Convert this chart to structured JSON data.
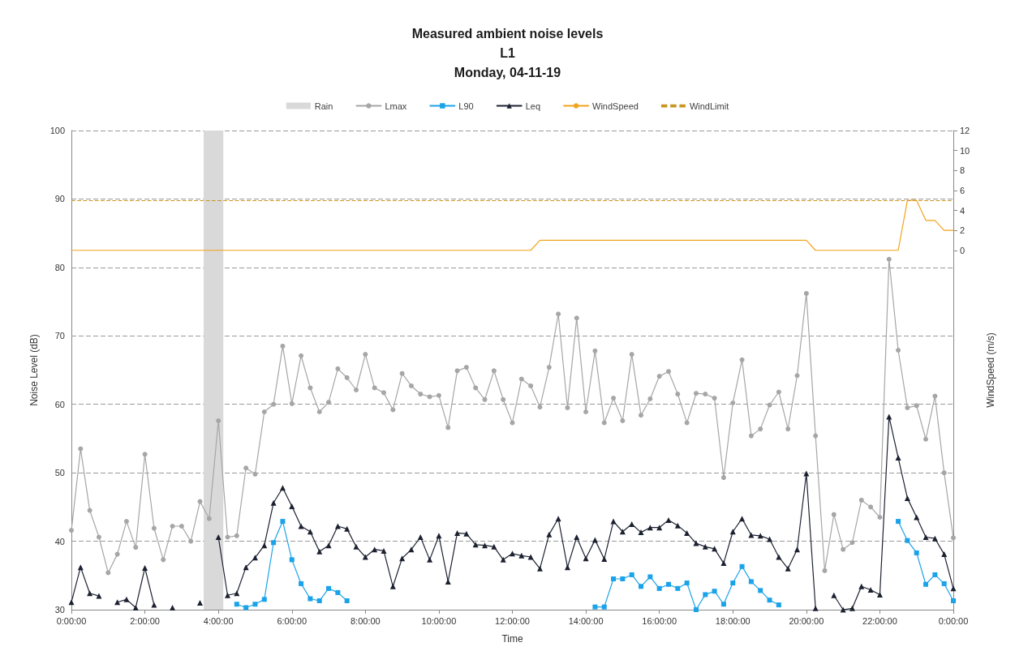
{
  "chart_data": {
    "type": "line",
    "title": "Measured ambient noise levels\nL1\nMonday, 04-11-19",
    "xlabel": "Time",
    "ylabel": "Noise Level (dB)",
    "y2label": "WindSpeed (m/s)",
    "x": [
      "--11-04T00:00",
      "--11-04T00:15",
      "--11-04T00:30",
      "--11-04T00:45",
      "--11-04T01:00",
      "--11-04T01:15",
      "--11-04T01:30",
      "--11-04T01:45",
      "--11-04T02:00",
      "--11-04T02:15",
      "--11-04T02:30",
      "--11-04T02:45",
      "--11-04T03:00",
      "--11-04T03:15",
      "--11-04T03:30",
      "--11-04T03:45",
      "--11-04T04:00",
      "--11-04T04:15",
      "--11-04T04:30",
      "--11-04T04:45",
      "--11-04T05:00",
      "--11-04T05:15",
      "--11-04T05:30",
      "--11-04T05:45",
      "--11-04T06:00",
      "--11-04T06:15",
      "--11-04T06:30",
      "--11-04T06:45",
      "--11-04T07:00",
      "--11-04T07:15",
      "--11-04T07:30",
      "--11-04T07:45",
      "--11-04T08:00",
      "--11-04T08:15",
      "--11-04T08:30",
      "--11-04T08:45",
      "--11-04T09:00",
      "--11-04T09:15",
      "--11-04T09:30",
      "--11-04T09:45",
      "--11-04T10:00",
      "--11-04T10:15",
      "--11-04T10:30",
      "--11-04T10:45",
      "--11-04T11:00",
      "--11-04T11:15",
      "--11-04T11:30",
      "--11-04T11:45",
      "--11-04T12:00",
      "--11-04T12:15",
      "--11-04T12:30",
      "--11-04T12:45",
      "--11-04T13:00",
      "--11-04T13:15",
      "--11-04T13:30",
      "--11-04T13:45",
      "--11-04T14:00",
      "--11-04T14:15",
      "--11-04T14:30",
      "--11-04T14:45",
      "--11-04T15:00",
      "--11-04T15:15",
      "--11-04T15:30",
      "--11-04T15:45",
      "--11-04T16:00",
      "--11-04T16:15",
      "--11-04T16:30",
      "--11-04T16:45",
      "--11-04T17:00",
      "--11-04T17:15",
      "--11-04T17:30",
      "--11-04T17:45",
      "--11-04T18:00",
      "--11-04T18:15",
      "--11-04T18:30",
      "--11-04T18:45",
      "--11-04T19:00",
      "--11-04T19:15",
      "--11-04T19:30",
      "--11-04T19:45",
      "--11-04T20:00",
      "--11-04T20:15",
      "--11-04T20:30",
      "--11-04T20:45",
      "--11-04T21:00",
      "--11-04T21:15",
      "--11-04T21:30",
      "--11-04T21:45",
      "--11-04T22:00",
      "--11-04T22:15",
      "--11-04T22:30",
      "--11-04T22:45",
      "--11-04T23:00",
      "--11-04T23:15",
      "--11-04T23:30",
      "--11-04T23:45",
      "--11-05T00:00"
    ],
    "xlim": [
      "--11-04T00:00",
      "--11-05T00:00"
    ],
    "xticks": [
      {
        "value": "--11-04T00:00",
        "label": "0:00:00"
      },
      {
        "value": "--11-04T02:00",
        "label": "2:00:00"
      },
      {
        "value": "--11-04T04:00",
        "label": "4:00:00"
      },
      {
        "value": "--11-04T06:00",
        "label": "6:00:00"
      },
      {
        "value": "--11-04T08:00",
        "label": "8:00:00"
      },
      {
        "value": "--11-04T10:00",
        "label": "10:00:00"
      },
      {
        "value": "--11-04T12:00",
        "label": "12:00:00"
      },
      {
        "value": "--11-04T14:00",
        "label": "14:00:00"
      },
      {
        "value": "--11-04T16:00",
        "label": "16:00:00"
      },
      {
        "value": "--11-04T18:00",
        "label": "18:00:00"
      },
      {
        "value": "--11-04T20:00",
        "label": "20:00:00"
      },
      {
        "value": "--11-04T22:00",
        "label": "22:00:00"
      },
      {
        "value": "--11-05T00:00",
        "label": "0:00:00"
      }
    ],
    "ylim": [
      30,
      100
    ],
    "yticks": [
      30,
      40,
      50,
      60,
      70,
      80,
      90,
      100
    ],
    "y2lim": [
      -36,
      12
    ],
    "y2ticks": [
      0,
      2,
      4,
      6,
      8,
      10,
      12
    ],
    "grid": "y",
    "legend": "top",
    "series": [
      {
        "name": "Lmax",
        "color": "#a6a6a6",
        "marker": "circle",
        "values": [
          41.6,
          53.5,
          44.5,
          40.6,
          35.4,
          38.1,
          42.9,
          39.1,
          52.7,
          41.9,
          37.3,
          42.2,
          42.2,
          40.0,
          45.8,
          43.3,
          57.6,
          40.6,
          40.8,
          50.7,
          49.8,
          58.9,
          60.0,
          68.5,
          60.1,
          67.1,
          62.4,
          58.9,
          60.3,
          65.2,
          63.9,
          62.1,
          67.3,
          62.4,
          61.7,
          59.2,
          64.5,
          62.7,
          61.5,
          61.1,
          61.3,
          56.6,
          64.9,
          65.4,
          62.4,
          60.7,
          64.9,
          60.7,
          57.3,
          63.7,
          62.7,
          59.6,
          65.4,
          73.2,
          59.5,
          72.6,
          58.9,
          67.8,
          57.3,
          60.9,
          57.6,
          67.3,
          58.4,
          60.8,
          64.1,
          64.8,
          61.5,
          57.3,
          61.6,
          61.5,
          60.9,
          49.3,
          60.2,
          66.5,
          55.4,
          56.4,
          59.9,
          61.8,
          56.4,
          64.2,
          76.2,
          55.4,
          35.7,
          43.9,
          38.8,
          39.8,
          46.0,
          45.0,
          43.5,
          81.2,
          67.9,
          59.5,
          59.8,
          54.9,
          61.2,
          50.0,
          40.5
        ]
      },
      {
        "name": "L90",
        "color": "#1aa3e8",
        "marker": "square",
        "values": [
          null,
          null,
          null,
          null,
          null,
          null,
          null,
          null,
          null,
          null,
          null,
          null,
          null,
          null,
          null,
          null,
          null,
          null,
          30.8,
          30.3,
          30.8,
          31.5,
          39.8,
          42.9,
          37.3,
          33.8,
          31.6,
          31.3,
          33.1,
          32.5,
          31.3,
          null,
          null,
          null,
          null,
          null,
          null,
          null,
          null,
          null,
          null,
          null,
          null,
          null,
          null,
          null,
          null,
          null,
          null,
          null,
          null,
          null,
          null,
          null,
          null,
          null,
          null,
          30.4,
          30.4,
          34.5,
          34.5,
          35.1,
          33.4,
          34.8,
          33.1,
          33.7,
          33.1,
          33.9,
          30.0,
          32.2,
          32.7,
          30.8,
          33.9,
          36.3,
          34.1,
          32.8,
          31.4,
          30.7,
          null,
          null,
          null,
          null,
          null,
          null,
          null,
          null,
          null,
          null,
          null,
          null,
          42.9,
          40.1,
          38.3,
          33.7,
          35.1,
          33.8,
          31.3
        ]
      },
      {
        "name": "Leq",
        "color": "#1c2130",
        "marker": "triangle",
        "values": [
          31.1,
          36.2,
          32.4,
          32.0,
          null,
          31.1,
          31.5,
          30.3,
          36.1,
          30.7,
          null,
          30.3,
          null,
          null,
          31.0,
          null,
          40.6,
          32.1,
          32.4,
          36.2,
          37.6,
          39.4,
          45.6,
          47.8,
          45.1,
          42.2,
          41.4,
          38.5,
          39.4,
          42.2,
          41.8,
          39.2,
          37.7,
          38.8,
          38.6,
          33.4,
          37.5,
          38.8,
          40.6,
          37.3,
          40.8,
          34.1,
          41.2,
          41.1,
          39.5,
          39.4,
          39.2,
          37.3,
          38.2,
          37.9,
          37.7,
          36.0,
          41.0,
          43.3,
          36.2,
          40.6,
          37.5,
          40.2,
          37.4,
          42.9,
          41.4,
          42.5,
          41.3,
          42.0,
          42.0,
          43.1,
          42.3,
          41.2,
          39.7,
          39.2,
          38.9,
          36.8,
          41.4,
          43.3,
          40.9,
          40.8,
          40.3,
          37.7,
          36.0,
          38.8,
          49.9,
          30.2,
          null,
          32.1,
          30.0,
          30.2,
          33.4,
          32.9,
          32.2,
          58.2,
          52.2,
          46.3,
          43.5,
          40.6,
          40.4,
          38.1,
          33.1
        ]
      },
      {
        "name": "WindSpeed",
        "color": "#f2a31b",
        "marker": "none",
        "axis": "y2",
        "values": [
          0,
          0,
          0,
          0,
          0,
          0,
          0,
          0,
          0,
          0,
          0,
          0,
          0,
          0,
          0,
          0,
          0,
          0,
          0,
          0,
          0,
          0,
          0,
          0,
          0,
          0,
          0,
          0,
          0,
          0,
          0,
          0,
          0,
          0,
          0,
          0,
          0,
          0,
          0,
          0,
          0,
          0,
          0,
          0,
          0,
          0,
          0,
          0,
          0,
          0,
          0,
          1,
          1,
          1,
          1,
          1,
          1,
          1,
          1,
          1,
          1,
          1,
          1,
          1,
          1,
          1,
          1,
          1,
          1,
          1,
          1,
          1,
          1,
          1,
          1,
          1,
          1,
          1,
          1,
          1,
          1,
          0,
          0,
          0,
          0,
          0,
          0,
          0,
          0,
          0,
          0,
          5,
          5,
          3,
          3,
          2,
          2
        ]
      }
    ],
    "bands": [
      {
        "axis": "x",
        "from": "--11-04T03:36",
        "to": "--11-04T04:08",
        "label": "Rain",
        "color": "#d9d9d9"
      }
    ],
    "ref_lines": [
      {
        "axis": "y2",
        "value": 5,
        "label": "WindLimit",
        "color": "#c8961e",
        "line_style": "dashed"
      }
    ]
  }
}
